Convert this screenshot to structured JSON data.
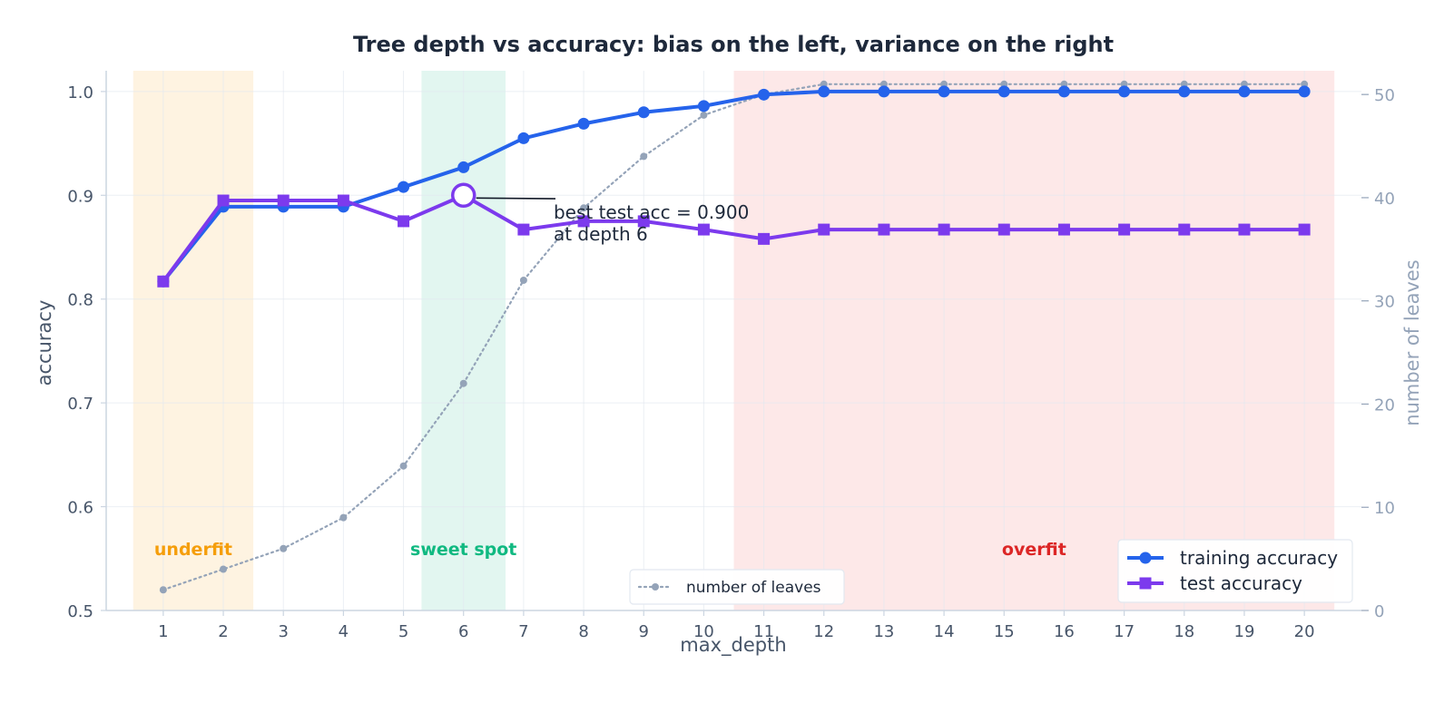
{
  "chart_data": {
    "type": "line",
    "title": "Tree depth vs accuracy: bias on the left, variance on the right",
    "xlabel": "max_depth",
    "ylabel": "accuracy",
    "y2label": "number of leaves",
    "x": [
      1,
      2,
      3,
      4,
      5,
      6,
      7,
      8,
      9,
      10,
      11,
      12,
      13,
      14,
      15,
      16,
      17,
      18,
      19,
      20
    ],
    "xlim": [
      0.05,
      20.95
    ],
    "ylim": [
      0.5,
      1.02
    ],
    "y2lim": [
      0,
      52.3
    ],
    "xticks": [
      "1",
      "2",
      "3",
      "4",
      "5",
      "6",
      "7",
      "8",
      "9",
      "10",
      "11",
      "12",
      "13",
      "14",
      "15",
      "16",
      "17",
      "18",
      "19",
      "20"
    ],
    "yticks": [
      "0.5",
      "0.6",
      "0.7",
      "0.8",
      "0.9",
      "1.0"
    ],
    "y2ticks": [
      "0",
      "10",
      "20",
      "30",
      "40",
      "50"
    ],
    "grid": true,
    "series": [
      {
        "name": "training accuracy",
        "axis": "left",
        "color": "#2563eb",
        "marker": "circle",
        "values": [
          0.817,
          0.889,
          0.889,
          0.889,
          0.908,
          0.927,
          0.955,
          0.969,
          0.98,
          0.986,
          0.997,
          1.0,
          1.0,
          1.0,
          1.0,
          1.0,
          1.0,
          1.0,
          1.0,
          1.0
        ]
      },
      {
        "name": "test accuracy",
        "axis": "left",
        "color": "#7c3aed",
        "marker": "square",
        "values": [
          0.817,
          0.895,
          0.895,
          0.895,
          0.875,
          0.9,
          0.867,
          0.875,
          0.875,
          0.867,
          0.858,
          0.867,
          0.867,
          0.867,
          0.867,
          0.867,
          0.867,
          0.867,
          0.867,
          0.867
        ]
      },
      {
        "name": "number of leaves",
        "axis": "right",
        "color": "#94a3b8",
        "marker": "dot",
        "style": "dotted",
        "values": [
          2,
          4,
          6,
          9,
          14,
          22,
          32,
          39,
          44,
          48,
          50,
          51,
          51,
          51,
          51,
          51,
          51,
          51,
          51,
          51
        ]
      }
    ],
    "regions": [
      {
        "label": "underfit",
        "from": 0.5,
        "to": 2.5,
        "color": "#f59e0b",
        "label_color": "#f59e0b",
        "label_x": 1.5
      },
      {
        "label": "sweet spot",
        "from": 5.3,
        "to": 6.7,
        "color": "#10b981",
        "label_color": "#10b981",
        "label_x": 6
      },
      {
        "label": "overfit",
        "from": 10.5,
        "to": 20.5,
        "color": "#ef4444",
        "label_color": "#dc2626",
        "label_x": 15.5
      }
    ],
    "annotation": {
      "lines": [
        "best test acc = 0.900",
        "at depth 6"
      ],
      "point": {
        "x": 6,
        "y": 0.9
      },
      "text_at": {
        "x": 7.5,
        "y": 0.888
      }
    },
    "legend_main": {
      "position": "bottom-right"
    },
    "legend_secondary": {
      "position": "bottom-center"
    }
  }
}
